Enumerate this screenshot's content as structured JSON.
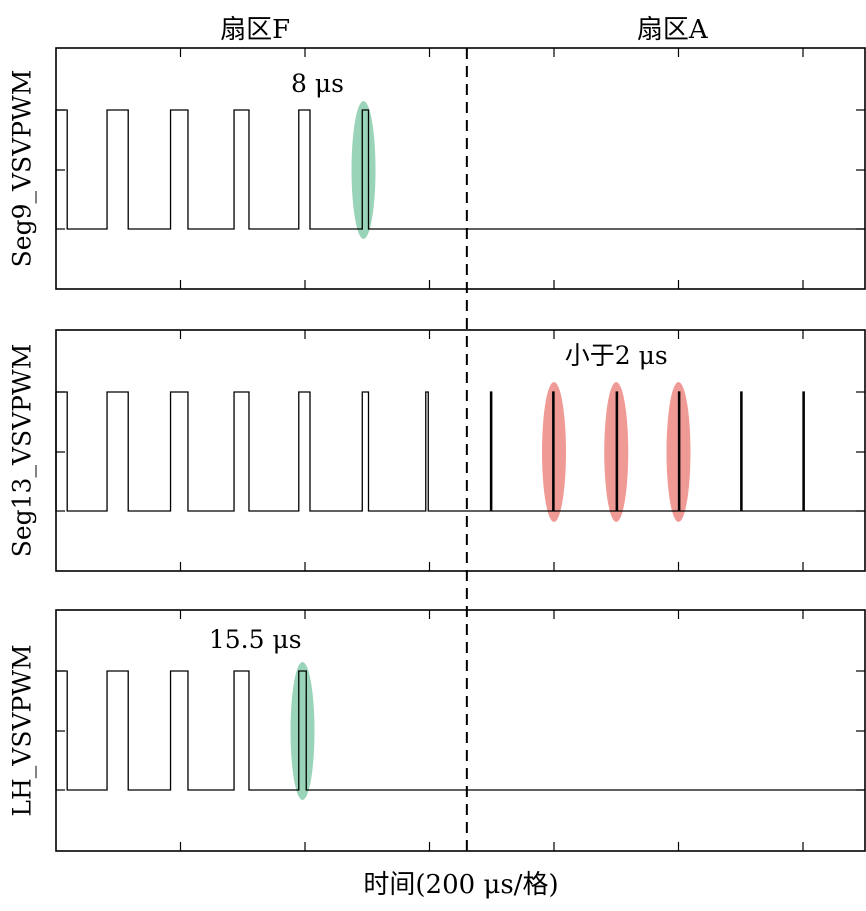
{
  "colors": {
    "line": "#000000",
    "green_marker": "#8fcfb0",
    "red_marker": "#ee8f8a"
  },
  "chart_data": {
    "type": "line",
    "xlabel": "时间(200 μs/格)",
    "x_unit_per_division": "200 μs",
    "x_divisions": 6.5,
    "sector_labels": [
      {
        "text": "扇区F",
        "x_div": 1.6
      },
      {
        "text": "扇区A",
        "x_div": 4.95
      }
    ],
    "sector_boundary_div": 3.3,
    "panels": [
      {
        "ylabel": "Seg9_VSVPWM",
        "annotation": {
          "text": "8 μs",
          "x_div": 2.1,
          "marker": "green",
          "marker_x_div": 2.47
        },
        "pulses": [
          {
            "start": 0.0,
            "end": 0.09
          },
          {
            "start": 0.41,
            "end": 0.58
          },
          {
            "start": 0.92,
            "end": 1.06
          },
          {
            "start": 1.43,
            "end": 1.55
          },
          {
            "start": 1.95,
            "end": 2.04
          },
          {
            "start": 2.46,
            "end": 2.51
          }
        ]
      },
      {
        "ylabel": "Seg13_VSVPWM",
        "annotation": {
          "text": "小于2 μs",
          "x_div": 4.5,
          "marker": "red",
          "marker_x_divs": [
            4.0,
            4.5,
            5.0
          ]
        },
        "pulses": [
          {
            "start": 0.0,
            "end": 0.09
          },
          {
            "start": 0.41,
            "end": 0.58
          },
          {
            "start": 0.92,
            "end": 1.06
          },
          {
            "start": 1.43,
            "end": 1.55
          },
          {
            "start": 1.95,
            "end": 2.04
          },
          {
            "start": 2.46,
            "end": 2.51
          },
          {
            "start": 2.97,
            "end": 2.99
          },
          {
            "start": 3.49,
            "end": 3.5
          },
          {
            "start": 3.99,
            "end": 4.0
          },
          {
            "start": 4.5,
            "end": 4.51
          },
          {
            "start": 5.0,
            "end": 5.01
          },
          {
            "start": 5.5,
            "end": 5.51
          },
          {
            "start": 6.0,
            "end": 6.01
          }
        ]
      },
      {
        "ylabel": "LH_VSVPWM",
        "annotation": {
          "text": "15.5 μs",
          "x_div": 1.6,
          "marker": "green",
          "marker_x_div": 1.98
        },
        "pulses": [
          {
            "start": 0.0,
            "end": 0.09
          },
          {
            "start": 0.41,
            "end": 0.58
          },
          {
            "start": 0.92,
            "end": 1.06
          },
          {
            "start": 1.43,
            "end": 1.55
          },
          {
            "start": 1.95,
            "end": 2.01
          }
        ]
      }
    ]
  }
}
